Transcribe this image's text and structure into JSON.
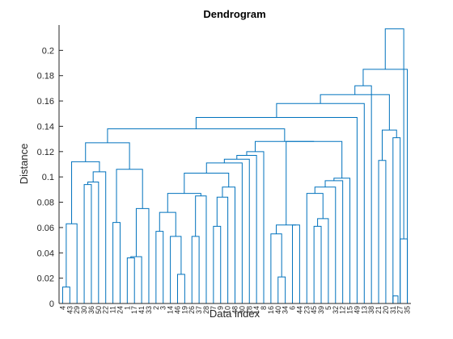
{
  "chart_data": {
    "type": "dendrogram",
    "title": "Dendrogram",
    "xlabel": "Data index",
    "ylabel": "Distance",
    "ylim": [
      0,
      0.22
    ],
    "yticks": [
      0,
      0.02,
      0.04,
      0.06,
      0.08,
      0.1,
      0.12,
      0.14,
      0.16,
      0.18,
      0.2
    ],
    "ytick_labels": [
      "0",
      "0.02",
      "0.04",
      "0.06",
      "0.08",
      "0.1",
      "0.12",
      "0.14",
      "0.16",
      "0.18",
      "0.2"
    ],
    "leaf_order": [
      "4",
      "43",
      "29",
      "30",
      "36",
      "50",
      "22",
      "11",
      "24",
      "1",
      "17",
      "41",
      "33",
      "2",
      "3",
      "14",
      "46",
      "19",
      "26",
      "37",
      "28",
      "7",
      "9",
      "10",
      "48",
      "30",
      "18",
      "14",
      "8",
      "16",
      "40",
      "34",
      "6",
      "44",
      "23",
      "45",
      "39",
      "5",
      "32",
      "12",
      "15",
      "49",
      "13",
      "38",
      "21",
      "20",
      "31",
      "27",
      "35"
    ],
    "links": [
      {
        "leaves": [
          0,
          1
        ],
        "height": 0.013
      },
      {
        "leaves": [
          1,
          1
        ],
        "height": 0.063
      },
      {
        "leaves": [
          3,
          4
        ],
        "height": 0.094
      },
      {
        "leaves": [
          3.5,
          5
        ],
        "height": 0.096
      },
      {
        "leaves": [
          4.25,
          6
        ],
        "height": 0.104
      },
      {
        "leaves": [
          0.5,
          5.125
        ],
        "height": 0.112
      },
      {
        "leaves": [
          9,
          10
        ],
        "height": 0.036
      },
      {
        "leaves": [
          9.5,
          10.5
        ],
        "height": 0.037
      },
      {
        "leaves": [
          7,
          8
        ],
        "height": 0.064
      },
      {
        "leaves": [
          10,
          11.5
        ],
        "height": 0.075
      },
      {
        "leaves": [
          7.5,
          10.75
        ],
        "height": 0.106
      },
      {
        "leaves": [
          2.8125,
          9.125
        ],
        "height": 0.127
      },
      {
        "leaves": [
          13,
          14
        ],
        "height": 0.057
      },
      {
        "leaves": [
          14.5,
          16
        ],
        "height": 0.023
      },
      {
        "leaves": [
          15,
          16
        ],
        "height": 0.053
      },
      {
        "leaves": [
          13.5,
          15.5
        ],
        "height": 0.072
      },
      {
        "leaves": [
          17,
          18
        ],
        "height": 0.053
      },
      {
        "leaves": [
          18.5,
          17.5
        ],
        "height": 0.085
      },
      {
        "leaves": [
          14.5,
          18
        ],
        "height": 0.087
      },
      {
        "leaves": [
          19.5,
          20
        ],
        "height": 0.061
      },
      {
        "leaves": [
          21,
          22
        ],
        "height": 0.084
      },
      {
        "leaves": [
          19.75,
          21.5
        ],
        "height": 0.092
      },
      {
        "leaves": [
          16.25,
          20.625
        ],
        "height": 0.103
      },
      {
        "leaves": [
          23,
          18.4375
        ],
        "height": 0.111
      },
      {
        "leaves": [
          24,
          20.71875
        ],
        "height": 0.114
      },
      {
        "leaves": [
          25,
          22.359375
        ],
        "height": 0.117
      },
      {
        "leaves": [
          26,
          23.6796875
        ],
        "height": 0.12
      }
    ],
    "grid": false
  }
}
